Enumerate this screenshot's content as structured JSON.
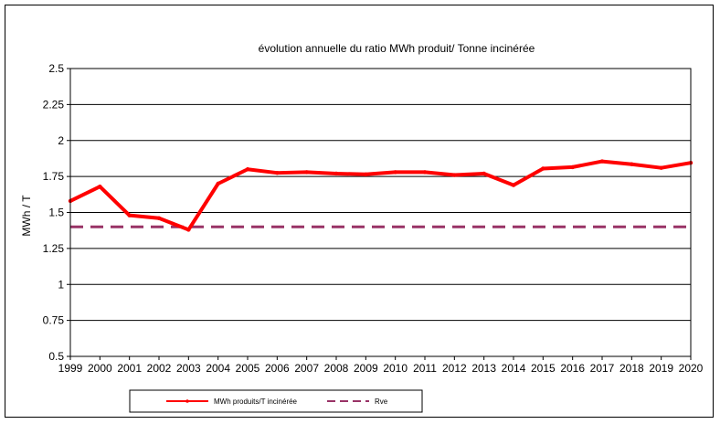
{
  "chart_data": {
    "type": "line",
    "title": "évolution annuelle du ratio MWh produit/ Tonne incinérée",
    "xlabel": "",
    "ylabel": "MWh / T",
    "ylim": [
      0.5,
      2.5
    ],
    "yticks": [
      0.5,
      0.75,
      1,
      1.25,
      1.5,
      1.75,
      2,
      2.25,
      2.5
    ],
    "ytick_labels": [
      "0.5",
      "0.75",
      "1",
      "1.25",
      "1.5",
      "1.75",
      "2",
      "2.25",
      "2.5"
    ],
    "grid": true,
    "legend_position": "bottom-left",
    "categories": [
      "1999",
      "2000",
      "2001",
      "2002",
      "2003",
      "2004",
      "2005",
      "2006",
      "2007",
      "2008",
      "2009",
      "2010",
      "2011",
      "2012",
      "2013",
      "2014",
      "2015",
      "2016",
      "2017",
      "2018",
      "2019",
      "2020"
    ],
    "series": [
      {
        "name": "MWh produits/T incinérée",
        "color": "#ff0000",
        "style": "solid",
        "values": [
          1.58,
          1.68,
          1.48,
          1.46,
          1.38,
          1.7,
          1.8,
          1.775,
          1.78,
          1.77,
          1.765,
          1.78,
          1.78,
          1.76,
          1.77,
          1.69,
          1.805,
          1.815,
          1.855,
          1.835,
          1.81,
          1.845
        ]
      },
      {
        "name": "Rve",
        "color": "#993366",
        "style": "dashed",
        "values": [
          1.4,
          1.4,
          1.4,
          1.4,
          1.4,
          1.4,
          1.4,
          1.4,
          1.4,
          1.4,
          1.4,
          1.4,
          1.4,
          1.4,
          1.4,
          1.4,
          1.4,
          1.4,
          1.4,
          1.4,
          1.4,
          1.4
        ]
      }
    ]
  }
}
